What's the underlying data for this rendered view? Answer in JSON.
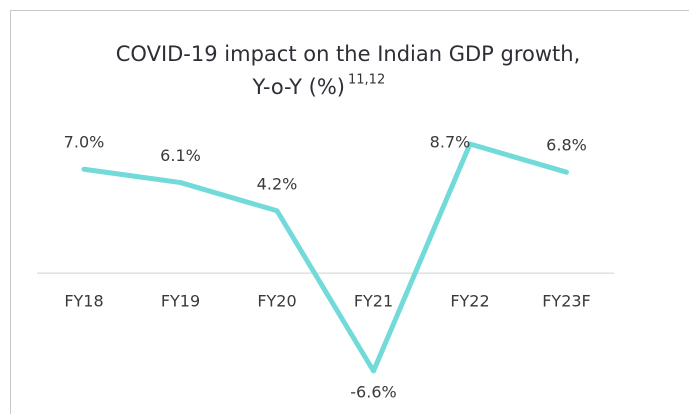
{
  "chart_data": {
    "type": "line",
    "title": [
      "COVID-19 impact on the Indian GDP growth,",
      "Y-o-Y (%)"
    ],
    "title_superscript": "11,12",
    "categories": [
      "FY18",
      "FY19",
      "FY20",
      "FY21",
      "FY22",
      "FY23F"
    ],
    "series": [
      {
        "name": "GDP growth",
        "color": "#72dbd9",
        "values": [
          7.0,
          6.1,
          4.2,
          -6.6,
          8.7,
          6.8
        ],
        "value_labels": [
          "7.0%",
          "6.1%",
          "4.2%",
          "-6.6%",
          "8.7%",
          "6.8%"
        ]
      }
    ]
  }
}
